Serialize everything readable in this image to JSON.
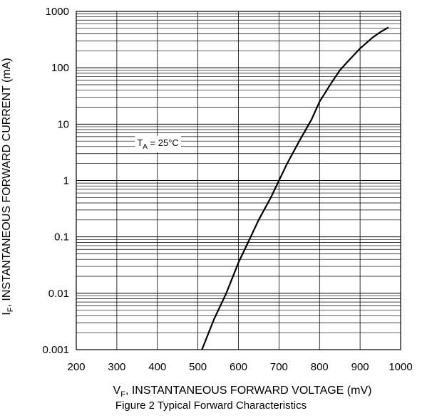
{
  "chart_data": {
    "type": "line",
    "title": "",
    "caption": "Figure 2 Typical Forward Characteristics",
    "xlabel_symbol": "V",
    "xlabel_sub": "F",
    "xlabel_rest": ", INSTANTANEOUS FORWARD VOLTAGE (mV)",
    "ylabel_symbol": "I",
    "ylabel_sub": "F",
    "ylabel_rest": ", INSTANTANEOUS FORWARD CURRENT (mA)",
    "xscale": "linear",
    "yscale": "log",
    "xlim": [
      200,
      1000
    ],
    "ylim": [
      0.001,
      1000
    ],
    "x_ticks": [
      "200",
      "300",
      "400",
      "500",
      "600",
      "700",
      "800",
      "900",
      "1000"
    ],
    "y_ticks": [
      "0.001",
      "0.01",
      "0.1",
      "1",
      "10",
      "100",
      "1000"
    ],
    "grid": true,
    "annotation": {
      "symbol": "T",
      "sub": "A",
      "rest": " = 25°C",
      "x": 350,
      "y": 4.5
    },
    "series": [
      {
        "x": [
          510,
          540,
          570,
          600,
          620,
          650,
          680,
          700,
          720,
          750,
          780,
          800,
          830,
          850,
          870,
          900,
          930,
          950,
          970
        ],
        "y": [
          0.001,
          0.0035,
          0.01,
          0.035,
          0.07,
          0.2,
          0.5,
          1.0,
          2.0,
          5.0,
          12,
          25,
          55,
          90,
          130,
          220,
          340,
          430,
          520
        ]
      }
    ]
  }
}
